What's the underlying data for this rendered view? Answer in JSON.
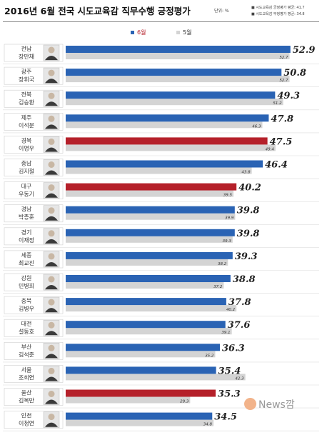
{
  "header": {
    "title": "2016년 6월 전국 시도교육감 직무수행 긍정평가",
    "unit": "단위: %",
    "avg_positive": "시도교육감 긍정평가 평균: 41.7",
    "avg_negative": "시도교육감 부정평가 평균: 34.8"
  },
  "colors": {
    "positive": "#2a63b4",
    "negative": "#b5202a",
    "previous": "#d4d4d4"
  },
  "chart_data": {
    "type": "bar",
    "orientation": "horizontal",
    "title": "2016년 6월 전국 시도교육감 직무수행 긍정평가",
    "unit": "%",
    "categories": [
      "전남 장만채",
      "광주 장휘국",
      "전북 김승환",
      "제주 이석문",
      "경북 이영우",
      "충남 김지철",
      "대구 우동기",
      "경남 박종훈",
      "경기 이재정",
      "세종 최교진",
      "강원 민병희",
      "충북 김병우",
      "대전 설동호",
      "부산 김석준",
      "서울 조희연",
      "울산 김복만",
      "인천 이청연"
    ],
    "regions": [
      "전남",
      "광주",
      "전북",
      "제주",
      "경북",
      "충남",
      "대구",
      "경남",
      "경기",
      "세종",
      "강원",
      "충북",
      "대전",
      "부산",
      "서울",
      "울산",
      "인천"
    ],
    "names": [
      "장만채",
      "장휘국",
      "김승환",
      "이석문",
      "이영우",
      "김지철",
      "우동기",
      "박종훈",
      "이재정",
      "최교진",
      "민병희",
      "김병우",
      "설동호",
      "김석준",
      "조희연",
      "김복만",
      "이청연"
    ],
    "series": [
      {
        "name": "6월",
        "values": [
          52.9,
          50.8,
          49.3,
          47.8,
          47.5,
          46.4,
          40.2,
          39.8,
          39.8,
          39.3,
          38.8,
          37.8,
          37.6,
          36.3,
          35.4,
          35.3,
          34.5
        ]
      },
      {
        "name": "5월",
        "values": [
          52.7,
          52.7,
          51.2,
          46.3,
          49.4,
          43.8,
          39.5,
          39.9,
          39.3,
          38.2,
          37.2,
          40.2,
          39.1,
          35.2,
          42.3,
          29.3,
          34.8
        ]
      }
    ],
    "highlight": [
      false,
      false,
      false,
      false,
      true,
      false,
      true,
      false,
      false,
      false,
      false,
      false,
      false,
      false,
      false,
      true,
      false
    ],
    "xlim": [
      0,
      55
    ],
    "legend": "top"
  },
  "watermark": "News깜"
}
